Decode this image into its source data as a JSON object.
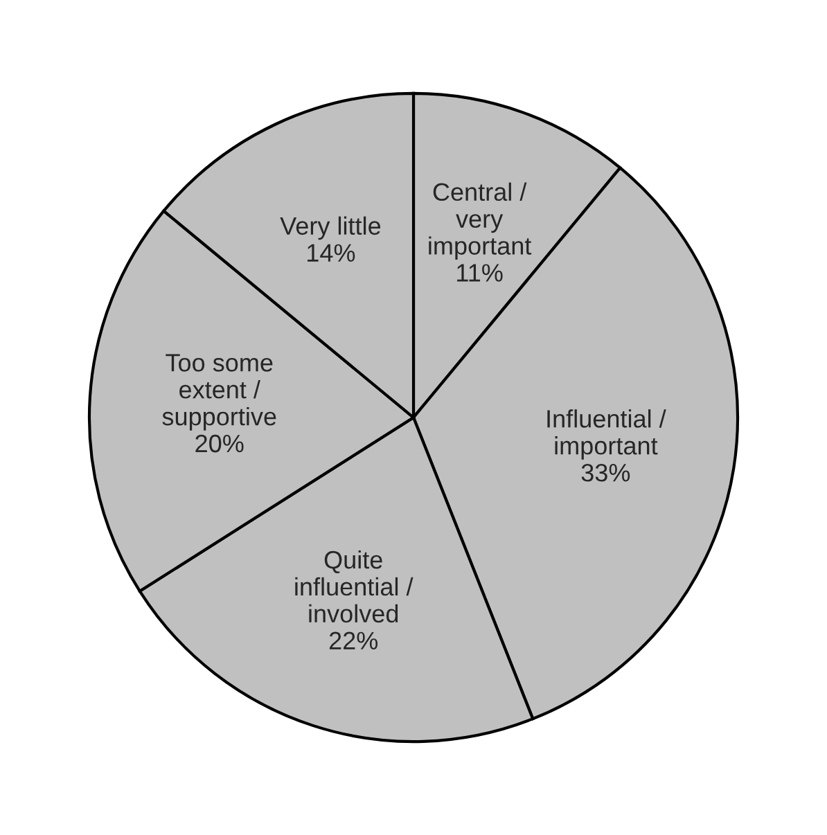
{
  "chart_data": {
    "type": "pie",
    "categories": [
      "Central /\nvery\nimportant",
      "Influential /\nimportant",
      "Quite\ninfluential /\ninvolved",
      "Too some\nextent /\nsupportive",
      "Very little"
    ],
    "values": [
      11,
      33,
      22,
      20,
      14
    ],
    "value_labels": [
      "11%",
      "33%",
      "22%",
      "20%",
      "14%"
    ],
    "colors": [
      "#c0c0c0",
      "#c0c0c0",
      "#c0c0c0",
      "#c0c0c0",
      "#c0c0c0"
    ],
    "legend": false
  }
}
